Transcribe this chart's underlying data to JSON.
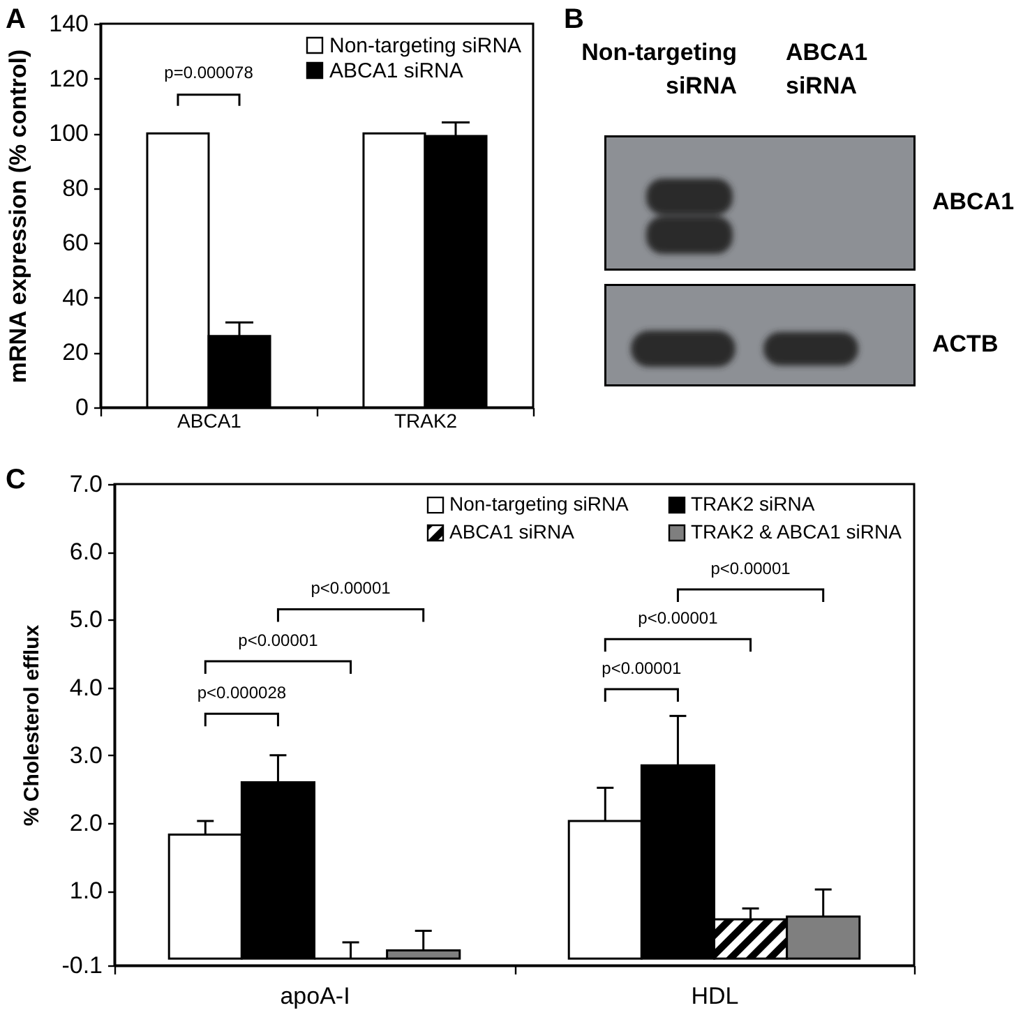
{
  "chart_data": [
    {
      "type": "bar",
      "title": "A",
      "ylabel": "mRNA expression (% control)",
      "categories": [
        "ABCA1",
        "TRAK2"
      ],
      "series": [
        {
          "name": "Non-targeting siRNA",
          "color": "#ffffff",
          "values": [
            100,
            100
          ]
        },
        {
          "name": "ABCA1 siRNA",
          "color": "#000000",
          "values": [
            26,
            99
          ],
          "errors": [
            [
              26,
              31
            ],
            [
              99,
              104
            ]
          ]
        }
      ],
      "ylim": [
        0,
        140
      ],
      "yticks": [
        0,
        20,
        40,
        60,
        80,
        100,
        120,
        140
      ],
      "grid": false,
      "legend": "top right",
      "annotations": [
        "p=0.000078"
      ]
    },
    {
      "type": "other",
      "title": "B",
      "annotations": [
        "Non-targeting siRNA",
        "ABCA1 siRNA",
        "ABCA1",
        "ACTB"
      ]
    },
    {
      "type": "bar",
      "title": "C",
      "ylabel": "% Cholesterol efflux",
      "categories": [
        "apoA-I",
        "HDL"
      ],
      "series": [
        {
          "name": "Non-targeting siRNA",
          "color": "#ffffff",
          "values": [
            1.83,
            2.03
          ],
          "errors": [
            [
              1.83,
              2.03
            ],
            [
              2.03,
              2.52
            ]
          ]
        },
        {
          "name": "TRAK2 siRNA",
          "color": "#000000",
          "values": [
            2.6,
            2.85
          ],
          "errors": [
            [
              2.6,
              3.0
            ],
            [
              2.85,
              3.58
            ]
          ]
        },
        {
          "name": "ABCA1 siRNA",
          "color": "#000000",
          "values": [
            0,
            0.58
          ],
          "errors": [
            [
              0,
              0.24
            ],
            [
              0.58,
              0.74
            ]
          ]
        },
        {
          "name": "TRAK2 & ABCA1 siRNA",
          "color": "#7f7f7f",
          "values": [
            0.12,
            0.62
          ],
          "errors": [
            [
              0.12,
              0.41
            ],
            [
              0.62,
              1.02
            ]
          ]
        }
      ],
      "ylim": [
        -0.1,
        7.0
      ],
      "yticks": [
        -0.1,
        {
          "value": 1,
          "label": "1.0"
        },
        {
          "value": 2,
          "label": "2.0"
        },
        {
          "value": 3,
          "label": "3.0"
        },
        {
          "value": 4,
          "label": "4.0"
        },
        {
          "value": 5,
          "label": "5.0"
        },
        {
          "value": 6,
          "label": "6.0"
        },
        {
          "value": 7,
          "label": "7.0"
        }
      ],
      "grid": false,
      "legend": "top right",
      "annotations": [
        "p<0.000028",
        "p<0.00001",
        "p<0.00001",
        "p<0.00001",
        "p<0.00001",
        "p<0.00001"
      ]
    }
  ]
}
